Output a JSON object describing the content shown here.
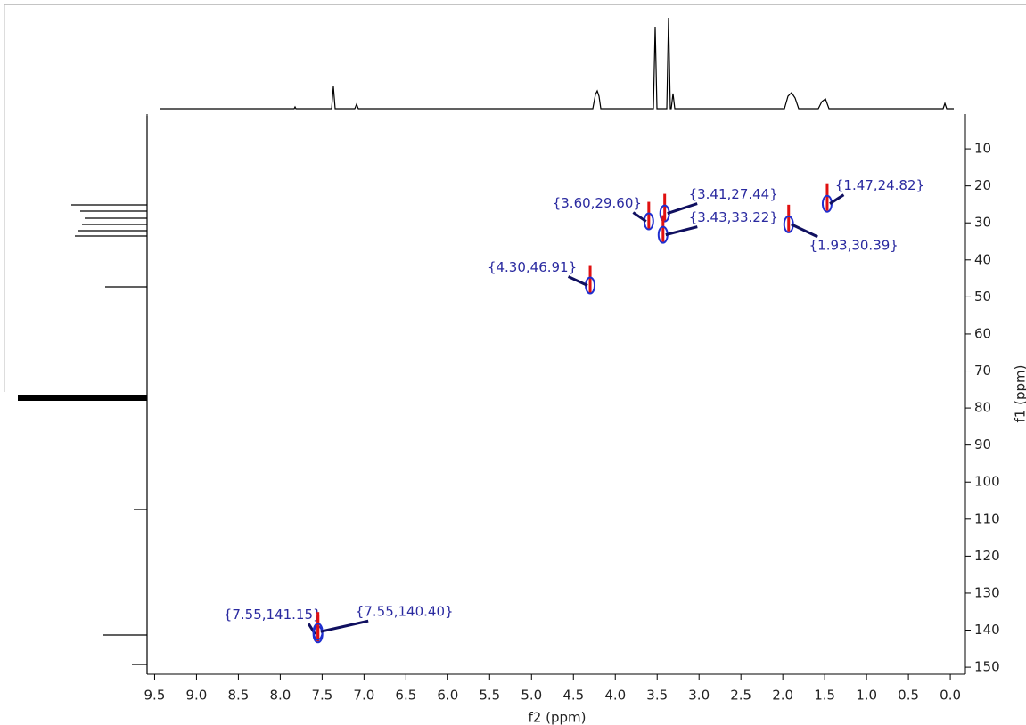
{
  "chart_data": {
    "type": "scatter",
    "x_label": "f2 (ppm)",
    "y_label": "f1 (ppm)",
    "xlim": [
      9.59,
      -0.18
    ],
    "ylim": [
      0.6,
      151.9
    ],
    "xticks": [
      {
        "value": 9.5,
        "label": "9.5"
      },
      {
        "value": 9,
        "label": "9.0"
      },
      {
        "value": 8.5,
        "label": "8.5"
      },
      {
        "value": 8,
        "label": "8.0"
      },
      {
        "value": 7.5,
        "label": "7.5"
      },
      {
        "value": 7,
        "label": "7.0"
      },
      {
        "value": 6.5,
        "label": "6.5"
      },
      {
        "value": 6,
        "label": "6.0"
      },
      {
        "value": 5.5,
        "label": "5.5"
      },
      {
        "value": 5,
        "label": "5.0"
      },
      {
        "value": 4.5,
        "label": "4.5"
      },
      {
        "value": 4,
        "label": "4.0"
      },
      {
        "value": 3.5,
        "label": "3.5"
      },
      {
        "value": 3,
        "label": "3.0"
      },
      {
        "value": 2.5,
        "label": "2.5"
      },
      {
        "value": 2,
        "label": "2.0"
      },
      {
        "value": 1.5,
        "label": "1.5"
      },
      {
        "value": 1,
        "label": "1.0"
      },
      {
        "value": 0.5,
        "label": "0.5"
      },
      {
        "value": 0,
        "label": "0.0"
      }
    ],
    "yticks": [
      10,
      20,
      30,
      40,
      50,
      60,
      70,
      80,
      90,
      100,
      110,
      120,
      130,
      140,
      150
    ],
    "series": [
      {
        "color": "#1f2fd0",
        "x": [
          7.55,
          7.55,
          4.3,
          3.6,
          3.41,
          3.43,
          1.93,
          1.47
        ],
        "values": [
          141.15,
          140.4,
          46.91,
          29.6,
          27.44,
          33.22,
          30.39,
          24.82
        ],
        "value_labels": [
          "{7.55,141.15}",
          "{7.55,140.40}",
          "{4.30,46.91}",
          "{3.60,29.60}",
          "{3.41,27.44}",
          "{3.43,33.22}",
          "{1.93,30.39}",
          "{1.47,24.82}"
        ]
      }
    ]
  }
}
